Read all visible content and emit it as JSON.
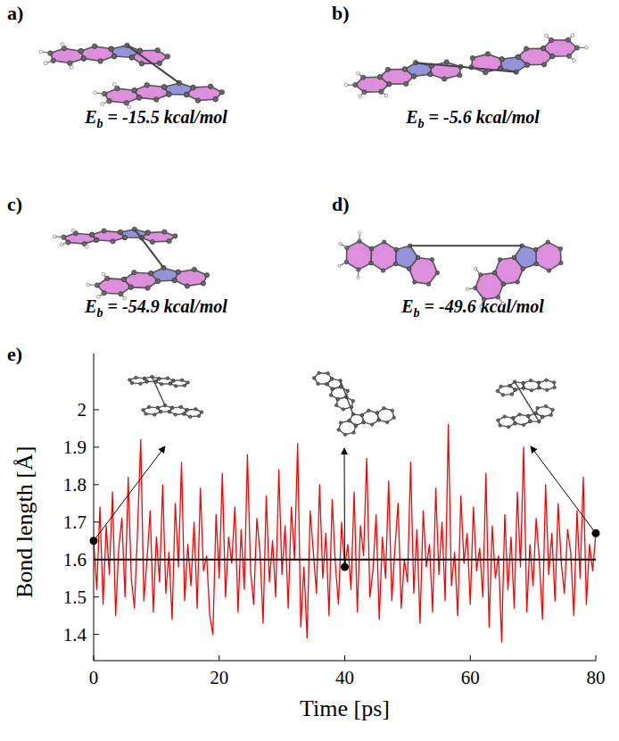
{
  "panels": [
    {
      "letter": "a)",
      "energy": {
        "symbol": "E",
        "subscript": "b",
        "text": " = -15.5 kcal/mol"
      }
    },
    {
      "letter": "b)",
      "energy": {
        "symbol": "E",
        "subscript": "b",
        "text": " = -5.6 kcal/mol"
      }
    },
    {
      "letter": "c)",
      "energy": {
        "symbol": "E",
        "subscript": "b",
        "text": " = -54.9 kcal/mol"
      }
    },
    {
      "letter": "d)",
      "energy": {
        "symbol": "E",
        "subscript": "b",
        "text": " = -49.6 kcal/mol"
      }
    }
  ],
  "chart_data": {
    "type": "line",
    "panel_label": "e)",
    "x_label": "Time [ps]",
    "y_label": "Bond length [Å]",
    "color": "#ff0000",
    "x": [
      0,
      0.5,
      1,
      1.5,
      2,
      2.5,
      3,
      3.5,
      4,
      4.5,
      5,
      5.5,
      6,
      6.5,
      7,
      7.5,
      8,
      8.5,
      9,
      9.5,
      10,
      10.5,
      11,
      11.5,
      12,
      12.5,
      13,
      13.5,
      14,
      14.5,
      15,
      15.5,
      16,
      16.5,
      17,
      17.5,
      18,
      18.5,
      19,
      19.5,
      20,
      20.5,
      21,
      21.5,
      22,
      22.5,
      23,
      23.5,
      24,
      24.5,
      25,
      25.5,
      26,
      26.5,
      27,
      27.5,
      28,
      28.5,
      29,
      29.5,
      30,
      30.5,
      31,
      31.5,
      32,
      32.5,
      33,
      33.5,
      34,
      34.5,
      35,
      35.5,
      36,
      36.5,
      37,
      37.5,
      38,
      38.5,
      39,
      39.5,
      40,
      40.5,
      41,
      41.5,
      42,
      42.5,
      43,
      43.5,
      44,
      44.5,
      45,
      45.5,
      46,
      46.5,
      47,
      47.5,
      48,
      48.5,
      49,
      49.5,
      50,
      50.5,
      51,
      51.5,
      52,
      52.5,
      53,
      53.5,
      54,
      54.5,
      55,
      55.5,
      56,
      56.5,
      57,
      57.5,
      58,
      58.5,
      59,
      59.5,
      60,
      60.5,
      61,
      61.5,
      62,
      62.5,
      63,
      63.5,
      64,
      64.5,
      65,
      65.5,
      66,
      66.5,
      67,
      67.5,
      68,
      68.5,
      69,
      69.5,
      70,
      70.5,
      71,
      71.5,
      72,
      72.5,
      73,
      73.5,
      74,
      74.5,
      75,
      75.5,
      76,
      76.5,
      77,
      77.5,
      78,
      78.5,
      79,
      79.5,
      80
    ],
    "values": [
      1.65,
      1.52,
      1.74,
      1.48,
      1.69,
      1.56,
      1.78,
      1.45,
      1.63,
      1.71,
      1.5,
      1.82,
      1.55,
      1.47,
      1.68,
      1.92,
      1.49,
      1.6,
      1.73,
      1.46,
      1.66,
      1.54,
      1.8,
      1.51,
      1.62,
      1.44,
      1.75,
      1.58,
      1.86,
      1.49,
      1.64,
      1.53,
      1.7,
      1.47,
      1.79,
      1.57,
      1.61,
      1.45,
      1.4,
      1.72,
      1.55,
      1.83,
      1.5,
      1.66,
      1.59,
      1.74,
      1.46,
      1.68,
      1.52,
      1.88,
      1.57,
      1.48,
      1.71,
      1.62,
      1.43,
      1.77,
      1.54,
      1.65,
      1.5,
      1.84,
      1.56,
      1.69,
      1.47,
      1.74,
      1.6,
      1.91,
      1.42,
      1.58,
      1.39,
      1.73,
      1.62,
      1.51,
      1.8,
      1.55,
      1.67,
      1.45,
      1.76,
      1.59,
      1.48,
      1.7,
      1.58,
      1.64,
      1.52,
      1.78,
      1.46,
      1.69,
      1.61,
      1.87,
      1.5,
      1.57,
      1.72,
      1.44,
      1.66,
      1.55,
      1.81,
      1.49,
      1.63,
      1.75,
      1.47,
      1.6,
      1.54,
      1.86,
      1.51,
      1.68,
      1.43,
      1.73,
      1.58,
      1.64,
      1.46,
      1.79,
      1.56,
      1.7,
      1.49,
      1.96,
      1.53,
      1.62,
      1.45,
      1.77,
      1.59,
      1.67,
      1.48,
      1.74,
      1.57,
      1.63,
      1.5,
      1.83,
      1.42,
      1.69,
      1.55,
      1.61,
      1.38,
      1.72,
      1.52,
      1.66,
      1.47,
      1.78,
      1.58,
      1.9,
      1.46,
      1.64,
      1.53,
      1.71,
      1.6,
      1.44,
      1.8,
      1.56,
      1.67,
      1.49,
      1.75,
      1.59,
      1.51,
      1.68,
      1.62,
      1.45,
      1.73,
      1.55,
      1.82,
      1.48,
      1.64,
      1.57,
      1.67
    ],
    "xlim": [
      0,
      80
    ],
    "xticks": [
      0,
      20,
      40,
      60,
      80
    ],
    "ylim": [
      1.33,
      2.15
    ],
    "yticks": [
      1.4,
      1.5,
      1.6,
      1.7,
      1.8,
      1.9,
      2
    ],
    "mean_line": 1.6,
    "highlight_points": {
      "x": [
        0,
        40,
        80
      ],
      "values": [
        1.65,
        1.58,
        1.67
      ]
    }
  }
}
